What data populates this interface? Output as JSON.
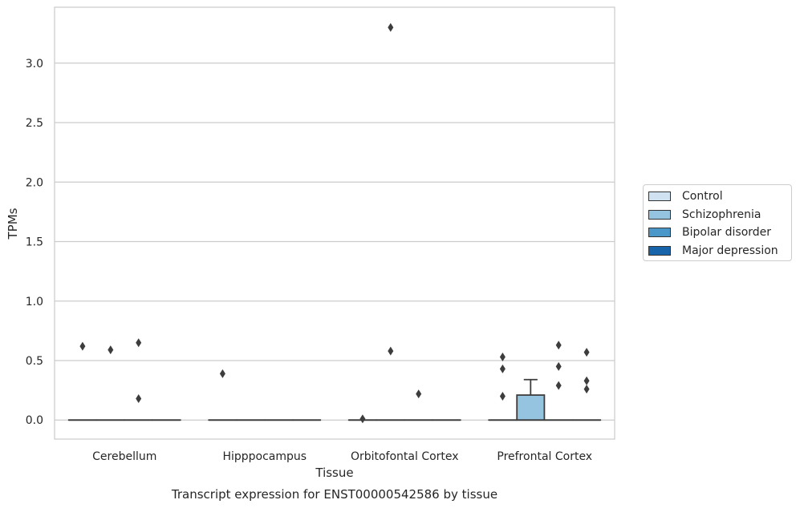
{
  "chart_data": {
    "type": "box",
    "title": "Transcript expression for ENST00000542586 by tissue",
    "xlabel": "Tissue",
    "ylabel": "TPMs",
    "ylim": [
      -0.16,
      3.47
    ],
    "yticks": [
      0.0,
      0.5,
      1.0,
      1.5,
      2.0,
      2.5,
      3.0
    ],
    "ytick_labels": [
      "0.0",
      "0.5",
      "1.0",
      "1.5",
      "2.0",
      "2.5",
      "3.0"
    ],
    "grid": true,
    "legend_position": "right",
    "categories": [
      "Cerebellum",
      "Hipppocampus",
      "Orbitofontal Cortex",
      "Prefrontal Cortex"
    ],
    "series": [
      {
        "name": "Control",
        "color": "#d0e1f2"
      },
      {
        "name": "Schizophrenia",
        "color": "#94c4df"
      },
      {
        "name": "Bipolar disorder",
        "color": "#4a98c9"
      },
      {
        "name": "Major depression",
        "color": "#1764ab"
      }
    ],
    "boxes": [
      {
        "category": "Cerebellum",
        "series": "Control",
        "q1": 0,
        "median": 0,
        "q3": 0,
        "whisker_low": 0,
        "whisker_high": 0,
        "outliers": [
          0.62
        ]
      },
      {
        "category": "Cerebellum",
        "series": "Schizophrenia",
        "q1": 0,
        "median": 0,
        "q3": 0,
        "whisker_low": 0,
        "whisker_high": 0,
        "outliers": [
          0.59
        ]
      },
      {
        "category": "Cerebellum",
        "series": "Bipolar disorder",
        "q1": 0,
        "median": 0,
        "q3": 0,
        "whisker_low": 0,
        "whisker_high": 0,
        "outliers": [
          0.65,
          0.18
        ]
      },
      {
        "category": "Cerebellum",
        "series": "Major depression",
        "q1": 0,
        "median": 0,
        "q3": 0,
        "whisker_low": 0,
        "whisker_high": 0,
        "outliers": []
      },
      {
        "category": "Hipppocampus",
        "series": "Control",
        "q1": 0,
        "median": 0,
        "q3": 0,
        "whisker_low": 0,
        "whisker_high": 0,
        "outliers": [
          0.39
        ]
      },
      {
        "category": "Hipppocampus",
        "series": "Schizophrenia",
        "q1": 0,
        "median": 0,
        "q3": 0,
        "whisker_low": 0,
        "whisker_high": 0,
        "outliers": []
      },
      {
        "category": "Hipppocampus",
        "series": "Bipolar disorder",
        "q1": 0,
        "median": 0,
        "q3": 0,
        "whisker_low": 0,
        "whisker_high": 0,
        "outliers": []
      },
      {
        "category": "Hipppocampus",
        "series": "Major depression",
        "q1": 0,
        "median": 0,
        "q3": 0,
        "whisker_low": 0,
        "whisker_high": 0,
        "outliers": []
      },
      {
        "category": "Orbitofontal Cortex",
        "series": "Control",
        "q1": 0,
        "median": 0,
        "q3": 0,
        "whisker_low": 0,
        "whisker_high": 0,
        "outliers": [
          0.01
        ]
      },
      {
        "category": "Orbitofontal Cortex",
        "series": "Schizophrenia",
        "q1": 0,
        "median": 0,
        "q3": 0,
        "whisker_low": 0,
        "whisker_high": 0,
        "outliers": [
          3.3,
          0.58
        ]
      },
      {
        "category": "Orbitofontal Cortex",
        "series": "Bipolar disorder",
        "q1": 0,
        "median": 0,
        "q3": 0,
        "whisker_low": 0,
        "whisker_high": 0,
        "outliers": [
          0.22
        ]
      },
      {
        "category": "Orbitofontal Cortex",
        "series": "Major depression",
        "q1": 0,
        "median": 0,
        "q3": 0,
        "whisker_low": 0,
        "whisker_high": 0,
        "outliers": []
      },
      {
        "category": "Prefrontal Cortex",
        "series": "Control",
        "q1": 0,
        "median": 0,
        "q3": 0,
        "whisker_low": 0,
        "whisker_high": 0,
        "outliers": [
          0.53,
          0.43,
          0.2
        ]
      },
      {
        "category": "Prefrontal Cortex",
        "series": "Schizophrenia",
        "q1": 0,
        "median": 0,
        "q3": 0.21,
        "whisker_low": 0,
        "whisker_high": 0.34,
        "outliers": []
      },
      {
        "category": "Prefrontal Cortex",
        "series": "Bipolar disorder",
        "q1": 0,
        "median": 0,
        "q3": 0,
        "whisker_low": 0,
        "whisker_high": 0,
        "outliers": [
          0.63,
          0.45,
          0.29
        ]
      },
      {
        "category": "Prefrontal Cortex",
        "series": "Major depression",
        "q1": 0,
        "median": 0,
        "q3": 0,
        "whisker_low": 0,
        "whisker_high": 0,
        "outliers": [
          0.57,
          0.33,
          0.26
        ]
      }
    ]
  }
}
